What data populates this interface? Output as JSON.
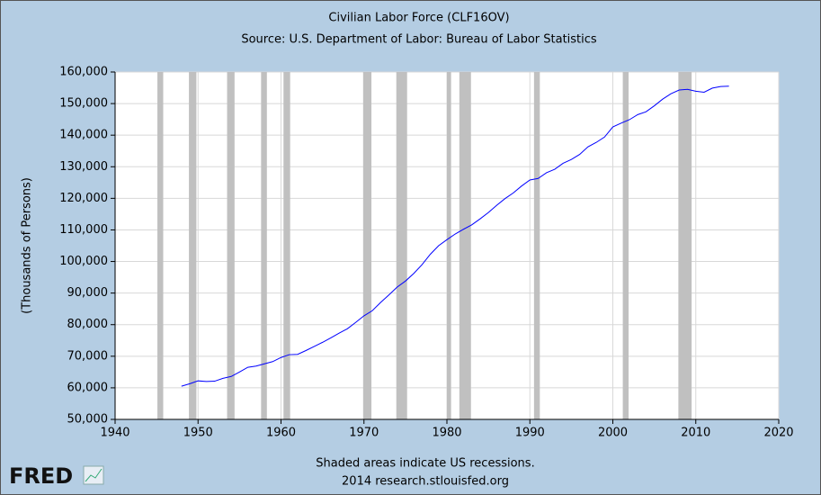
{
  "chart_data": {
    "type": "line",
    "title": "Civilian Labor Force (CLF16OV)",
    "subtitle": "Source: U.S. Department of Labor: Bureau of Labor Statistics",
    "y_label": "(Thousands of Persons)",
    "note": "Shaded areas indicate US recessions.",
    "source": "2014 research.stlouisfed.org",
    "logo": "FRED",
    "color": "#0000ff",
    "recession_color": "#c0c0c0",
    "background": "#b4cde3",
    "grid": true,
    "xlim": [
      1940,
      2020
    ],
    "xticks": [
      1940,
      1950,
      1960,
      1970,
      1980,
      1990,
      2000,
      2010,
      2020
    ],
    "ylim": [
      50000,
      160000
    ],
    "yticks": [
      {
        "value": 50000,
        "label": "50,000"
      },
      {
        "value": 60000,
        "label": "60,000"
      },
      {
        "value": 70000,
        "label": "70,000"
      },
      {
        "value": 80000,
        "label": "80,000"
      },
      {
        "value": 90000,
        "label": "90,000"
      },
      {
        "value": 100000,
        "label": "100,000"
      },
      {
        "value": 110000,
        "label": "110,000"
      },
      {
        "value": 120000,
        "label": "120,000"
      },
      {
        "value": 130000,
        "label": "130,000"
      },
      {
        "value": 140000,
        "label": "140,000"
      },
      {
        "value": 150000,
        "label": "150,000"
      },
      {
        "value": 160000,
        "label": "160,000"
      }
    ],
    "recessions": [
      [
        1945.1,
        1945.8
      ],
      [
        1948.9,
        1949.8
      ],
      [
        1953.5,
        1954.4
      ],
      [
        1957.6,
        1958.3
      ],
      [
        1960.3,
        1961.1
      ],
      [
        1969.9,
        1970.9
      ],
      [
        1973.9,
        1975.2
      ],
      [
        1980.0,
        1980.5
      ],
      [
        1981.5,
        1982.9
      ],
      [
        1990.5,
        1991.2
      ],
      [
        2001.2,
        2001.9
      ],
      [
        2007.9,
        2009.5
      ]
    ],
    "x": [
      1948,
      1949,
      1950,
      1951,
      1952,
      1953,
      1954,
      1955,
      1956,
      1957,
      1958,
      1959,
      1960,
      1961,
      1962,
      1963,
      1964,
      1965,
      1966,
      1967,
      1968,
      1969,
      1970,
      1971,
      1972,
      1973,
      1974,
      1975,
      1976,
      1977,
      1978,
      1979,
      1980,
      1981,
      1982,
      1983,
      1984,
      1985,
      1986,
      1987,
      1988,
      1989,
      1990,
      1991,
      1992,
      1993,
      1994,
      1995,
      1996,
      1997,
      1998,
      1999,
      2000,
      2001,
      2002,
      2003,
      2004,
      2005,
      2006,
      2007,
      2008,
      2009,
      2010,
      2011,
      2012,
      2013,
      2014
    ],
    "values": [
      60500,
      61300,
      62200,
      62000,
      62100,
      63000,
      63600,
      65000,
      66500,
      66900,
      67600,
      68300,
      69600,
      70500,
      70600,
      71800,
      73100,
      74400,
      75800,
      77300,
      78700,
      80700,
      82800,
      84400,
      87000,
      89400,
      91900,
      93800,
      96200,
      99000,
      102300,
      105000,
      106900,
      108700,
      110200,
      111600,
      113500,
      115500,
      117800,
      119900,
      121700,
      123900,
      125800,
      126300,
      128100,
      129200,
      131100,
      132300,
      133900,
      136300,
      137700,
      139400,
      142600,
      143800,
      144900,
      146500,
      147400,
      149300,
      151400,
      153100,
      154300,
      154500,
      153900,
      153600,
      154900,
      155400,
      155500
    ]
  }
}
